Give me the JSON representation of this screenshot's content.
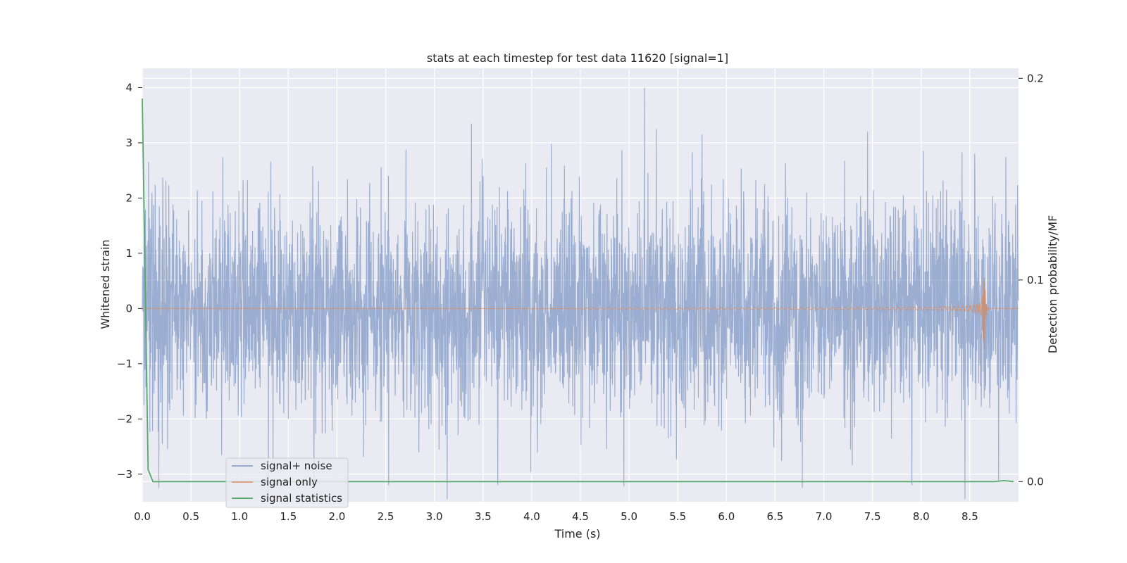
{
  "chart_data": {
    "type": "line",
    "title": "stats at each timestep for test data 11620 [signal=1]",
    "xlabel": "Time (s)",
    "ylabel": "Whitened strain",
    "y2label": "Detection probability/MF",
    "xlim": [
      0.0,
      9.0
    ],
    "ylim": [
      -3.5,
      4.35
    ],
    "y2lim": [
      -0.01,
      0.205
    ],
    "x_ticks": [
      "0.0",
      "0.5",
      "1.0",
      "1.5",
      "2.0",
      "2.5",
      "3.0",
      "3.5",
      "4.0",
      "4.5",
      "5.0",
      "5.5",
      "6.0",
      "6.5",
      "7.0",
      "7.5",
      "8.0",
      "8.5"
    ],
    "y_ticks": [
      "4",
      "3",
      "2",
      "1",
      "0",
      "−1",
      "−2",
      "−3"
    ],
    "y2_ticks": [
      "0.2",
      "0.1",
      "0.0"
    ],
    "grid": true,
    "legend_position": "lower-left",
    "colors": {
      "background": "#eaeaf2",
      "grid": "#ffffff",
      "signal_noise": "#4c72b0",
      "signal_only": "#dd8452",
      "statistics": "#55a868"
    },
    "series": [
      {
        "name": "signal+ noise",
        "axis": "left",
        "description_kind": "gaussian-like noise around 0",
        "std": 0.95,
        "notable_peaks": [
          {
            "x": 0.03,
            "y": 1.45
          },
          {
            "x": 0.1,
            "y": 2.1
          },
          {
            "x": 0.17,
            "y": -3.25
          },
          {
            "x": 2.53,
            "y": -3.2
          },
          {
            "x": 3.38,
            "y": 3.35
          },
          {
            "x": 3.65,
            "y": -3.2
          },
          {
            "x": 5.16,
            "y": 4.0
          },
          {
            "x": 5.28,
            "y": 3.25
          },
          {
            "x": 5.75,
            "y": 3.15
          },
          {
            "x": 6.78,
            "y": -3.25
          },
          {
            "x": 7.45,
            "y": 3.2
          },
          {
            "x": 8.55,
            "y": 2.8
          }
        ]
      },
      {
        "name": "signal only",
        "axis": "left",
        "description_kind": "chirp growing in amplitude, merger then ringdown",
        "start_x": 4.5,
        "peak_x": 8.65,
        "peak_amplitude": 0.58,
        "min_amplitude": -0.78
      },
      {
        "name": "signal statistics",
        "axis": "right",
        "x": [
          0.0,
          0.06,
          0.11,
          0.2,
          1.0,
          2.0,
          3.0,
          4.0,
          5.0,
          6.0,
          7.0,
          8.0,
          8.75,
          8.85,
          8.95
        ],
        "values": [
          0.19,
          0.006,
          0.0,
          0.0,
          0.0,
          0.0,
          0.0,
          0.0,
          0.0,
          0.0,
          0.0,
          0.0,
          0.0,
          0.0005,
          0.0
        ]
      }
    ]
  }
}
